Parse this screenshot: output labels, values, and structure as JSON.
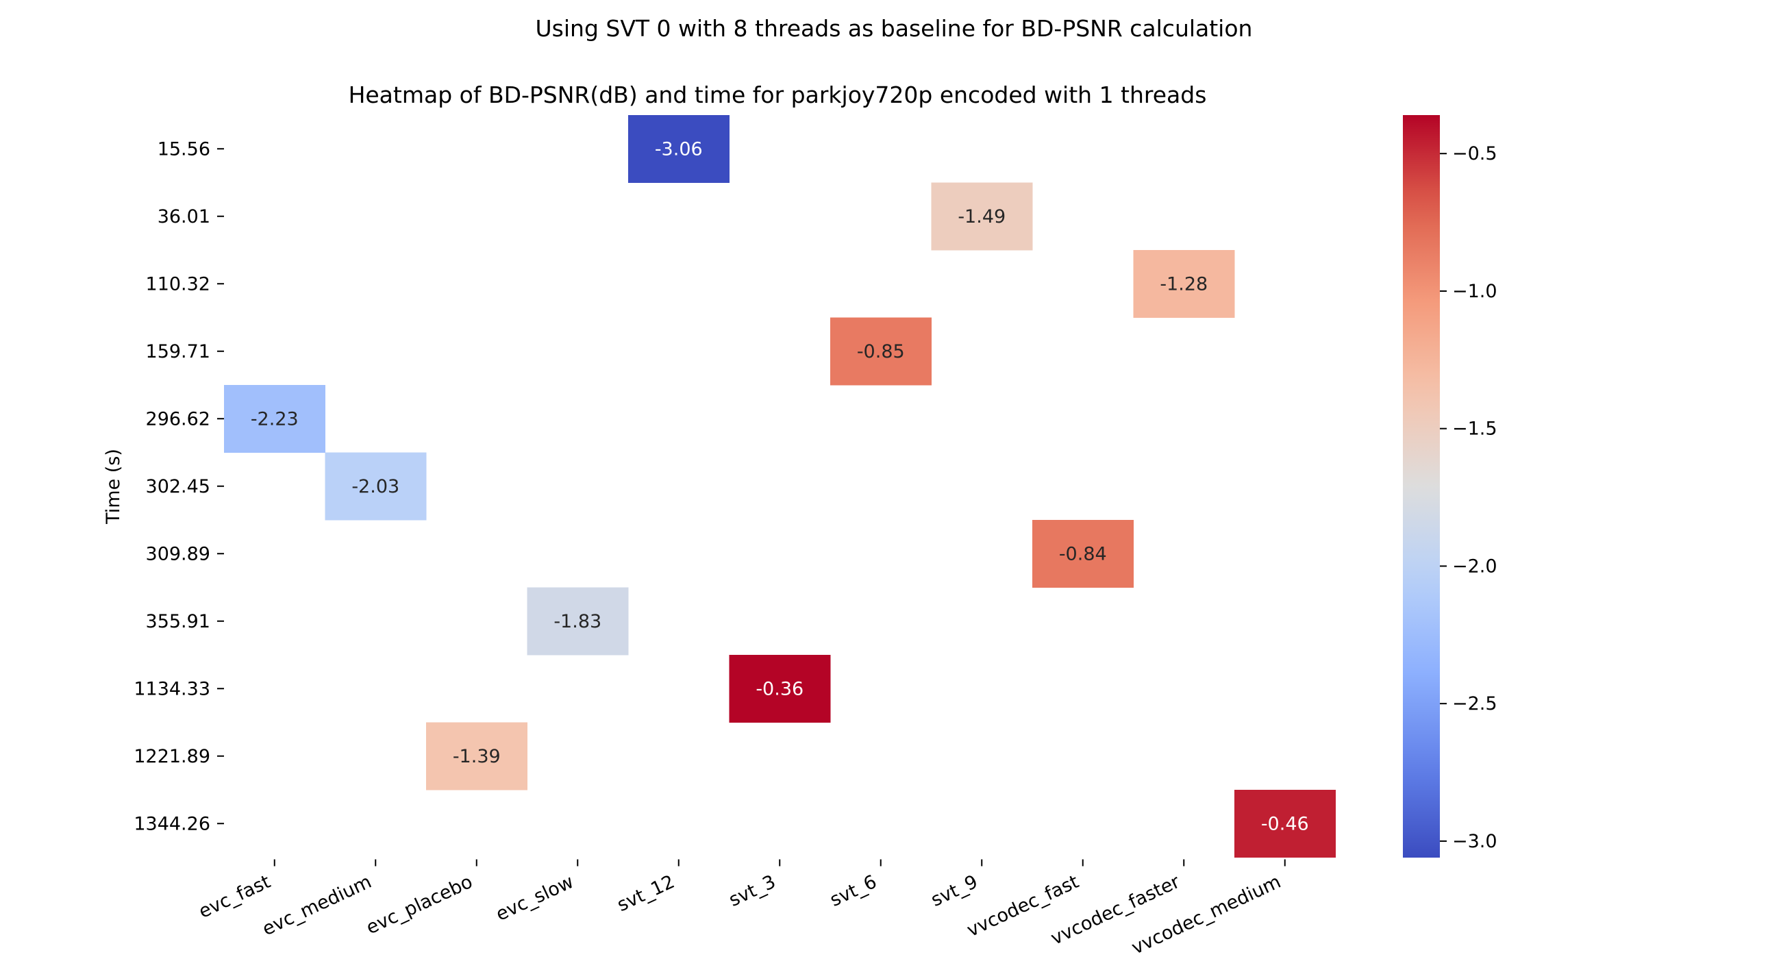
{
  "chart_data": {
    "type": "heatmap",
    "suptitle": "Using SVT 0 with 8 threads as baseline for BD-PSNR calculation",
    "title": "Heatmap of BD-PSNR(dB) and time for parkjoy720p encoded with 1 threads",
    "ylabel": "Time (s)",
    "xlabel": "",
    "colormap": "coolwarm",
    "x_categories": [
      "evc_fast",
      "evc_medium",
      "evc_placebo",
      "evc_slow",
      "svt_12",
      "svt_3",
      "svt_6",
      "svt_9",
      "vvcodec_fast",
      "vvcodec_faster",
      "vvcodec_medium"
    ],
    "y_categories": [
      "15.56",
      "36.01",
      "110.32",
      "159.71",
      "296.62",
      "302.45",
      "309.89",
      "355.91",
      "1134.33",
      "1221.89",
      "1344.26"
    ],
    "cells": [
      {
        "x": "svt_12",
        "y": "15.56",
        "value": -3.06,
        "label": "-3.06"
      },
      {
        "x": "svt_9",
        "y": "36.01",
        "value": -1.49,
        "label": "-1.49"
      },
      {
        "x": "vvcodec_faster",
        "y": "110.32",
        "value": -1.28,
        "label": "-1.28"
      },
      {
        "x": "svt_6",
        "y": "159.71",
        "value": -0.85,
        "label": "-0.85"
      },
      {
        "x": "evc_fast",
        "y": "296.62",
        "value": -2.23,
        "label": "-2.23"
      },
      {
        "x": "evc_medium",
        "y": "302.45",
        "value": -2.03,
        "label": "-2.03"
      },
      {
        "x": "vvcodec_fast",
        "y": "309.89",
        "value": -0.84,
        "label": "-0.84"
      },
      {
        "x": "evc_slow",
        "y": "355.91",
        "value": -1.83,
        "label": "-1.83"
      },
      {
        "x": "svt_3",
        "y": "1134.33",
        "value": -0.36,
        "label": "-0.36"
      },
      {
        "x": "evc_placebo",
        "y": "1221.89",
        "value": -1.39,
        "label": "-1.39"
      },
      {
        "x": "vvcodec_medium",
        "y": "1344.26",
        "value": -0.46,
        "label": "-0.46"
      }
    ],
    "colorbar": {
      "range": [
        -3.06,
        -0.36
      ],
      "ticks": [
        -0.5,
        -1.0,
        -1.5,
        -2.0,
        -2.5,
        -3.0
      ],
      "tick_labels": [
        "−0.5",
        "−1.0",
        "−1.5",
        "−2.0",
        "−2.5",
        "−3.0"
      ]
    },
    "grid": false,
    "legend": "colorbar-right"
  }
}
